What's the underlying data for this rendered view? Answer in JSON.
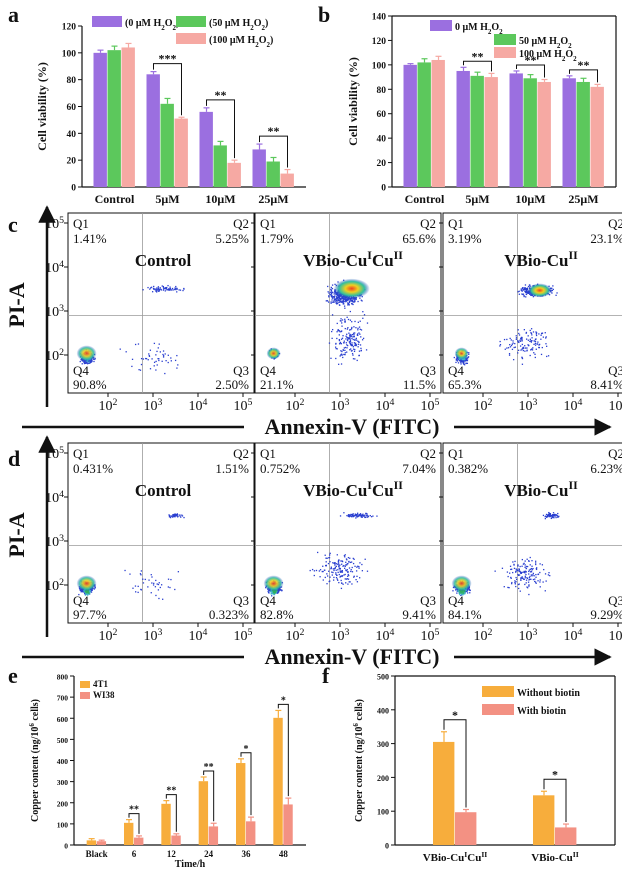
{
  "colors": {
    "purple": "#9b6fe0",
    "green": "#5cc85c",
    "pink": "#f6a9a3",
    "orange": "#f7ad3c",
    "salmon": "#f39183",
    "axis": "#111111",
    "gate": "#9a9a9a"
  },
  "chart_data": [
    {
      "panel": "a",
      "type": "bar",
      "ylabel": "Cell viability (%)",
      "ylim": [
        0,
        120
      ],
      "yticks": [
        0,
        20,
        40,
        60,
        80,
        100,
        120
      ],
      "categories": [
        "Control",
        "5μM",
        "10μM",
        "25μM"
      ],
      "series": [
        {
          "name": "(0 μM H2O2)",
          "values": [
            100,
            84,
            56,
            28
          ],
          "errors": [
            2,
            2,
            3,
            4
          ]
        },
        {
          "name": "(50 μM H2O2)",
          "values": [
            102,
            62,
            31,
            19
          ],
          "errors": [
            3,
            4,
            3,
            3
          ]
        },
        {
          "name": "(100 μM H2O2)",
          "values": [
            104,
            51,
            18,
            10
          ],
          "errors": [
            3,
            1,
            2,
            3
          ]
        }
      ],
      "legend": "top",
      "significance": [
        {
          "category": 1,
          "label": "***"
        },
        {
          "category": 2,
          "label": "**"
        },
        {
          "category": 3,
          "label": "**"
        }
      ]
    },
    {
      "panel": "b",
      "type": "bar",
      "ylabel": "Cell viability (%)",
      "ylim": [
        0,
        140
      ],
      "yticks": [
        0,
        20,
        40,
        60,
        80,
        100,
        120,
        140
      ],
      "categories": [
        "Control",
        "5μM",
        "10μM",
        "25μM"
      ],
      "series": [
        {
          "name": "0 μM H2O2",
          "values": [
            100,
            95,
            93,
            89
          ],
          "errors": [
            1,
            3,
            2,
            2
          ]
        },
        {
          "name": "50 μM H2O2",
          "values": [
            102,
            91,
            89,
            86
          ],
          "errors": [
            3,
            3,
            3,
            3
          ]
        },
        {
          "name": "100 μM H2O2",
          "values": [
            104,
            90,
            86,
            82
          ],
          "errors": [
            3,
            3,
            2,
            2
          ]
        }
      ],
      "legend": "top-right",
      "significance": [
        {
          "category": 1,
          "label": "**"
        },
        {
          "category": 2,
          "label": "**"
        },
        {
          "category": 3,
          "label": "**"
        }
      ]
    },
    {
      "panel": "c",
      "type": "scatter",
      "ylabel": "PI-A",
      "xlabel": "Annexin-V (FITC)",
      "x_ticks": [
        "10^2",
        "10^3",
        "10^4",
        "10^5"
      ],
      "y_ticks": [
        "10^2",
        "10^3",
        "10^4",
        "10^5"
      ],
      "plots": [
        {
          "label": "Control",
          "Q1": "1.41%",
          "Q2": "5.25%",
          "Q3": "2.50%",
          "Q4": "90.8%"
        },
        {
          "label": "VBio-CuICuII",
          "Q1": "1.79%",
          "Q2": "65.6%",
          "Q3": "11.5%",
          "Q4": "21.1%"
        },
        {
          "label": "VBio-CuII",
          "Q1": "3.19%",
          "Q2": "23.1%",
          "Q3": "8.41%",
          "Q4": "65.3%"
        }
      ]
    },
    {
      "panel": "d",
      "type": "scatter",
      "ylabel": "PI-A",
      "xlabel": "Annexin-V (FITC)",
      "x_ticks": [
        "10^2",
        "10^3",
        "10^4",
        "10^5"
      ],
      "y_ticks": [
        "10^2",
        "10^3",
        "10^4",
        "10^5"
      ],
      "plots": [
        {
          "label": "Control",
          "Q1": "0.431%",
          "Q2": "1.51%",
          "Q3": "0.323%",
          "Q4": "97.7%"
        },
        {
          "label": "VBio-CuICuII",
          "Q1": "0.752%",
          "Q2": "7.04%",
          "Q3": "9.41%",
          "Q4": "82.8%"
        },
        {
          "label": "VBio-CuII",
          "Q1": "0.382%",
          "Q2": "6.23%",
          "Q3": "9.29%",
          "Q4": "84.1%"
        }
      ]
    },
    {
      "panel": "e",
      "type": "bar",
      "ylabel": "Copper content (ng/10^6 cells)",
      "xlabel": "Time/h",
      "ylim": [
        0,
        800
      ],
      "yticks": [
        0,
        100,
        200,
        300,
        400,
        500,
        600,
        700,
        800
      ],
      "categories": [
        "Black",
        "6",
        "12",
        "24",
        "36",
        "48"
      ],
      "series": [
        {
          "name": "4T1",
          "values": [
            22,
            105,
            195,
            302,
            388,
            602
          ],
          "errors": [
            8,
            15,
            15,
            20,
            20,
            35
          ]
        },
        {
          "name": "WI38",
          "values": [
            18,
            35,
            45,
            88,
            112,
            192
          ],
          "errors": [
            5,
            8,
            8,
            15,
            20,
            30
          ]
        }
      ],
      "legend": "top-left",
      "significance": [
        {
          "category": 1,
          "label": "**"
        },
        {
          "category": 2,
          "label": "**"
        },
        {
          "category": 3,
          "label": "**"
        },
        {
          "category": 4,
          "label": "*"
        },
        {
          "category": 5,
          "label": "*"
        }
      ]
    },
    {
      "panel": "f",
      "type": "bar",
      "ylabel": "Copper content (ng/10^6 cells)",
      "ylim": [
        0,
        500
      ],
      "yticks": [
        0,
        100,
        200,
        300,
        400,
        500
      ],
      "categories": [
        "VBio-CuICuII",
        "VBio-CuII"
      ],
      "series": [
        {
          "name": "Without biotin",
          "values": [
            305,
            147
          ],
          "errors": [
            30,
            12
          ]
        },
        {
          "name": "With biotin",
          "values": [
            97,
            52
          ],
          "errors": [
            8,
            10
          ]
        }
      ],
      "legend": "top-right",
      "significance": [
        {
          "category": 0,
          "label": "*"
        },
        {
          "category": 1,
          "label": "*"
        }
      ]
    }
  ]
}
